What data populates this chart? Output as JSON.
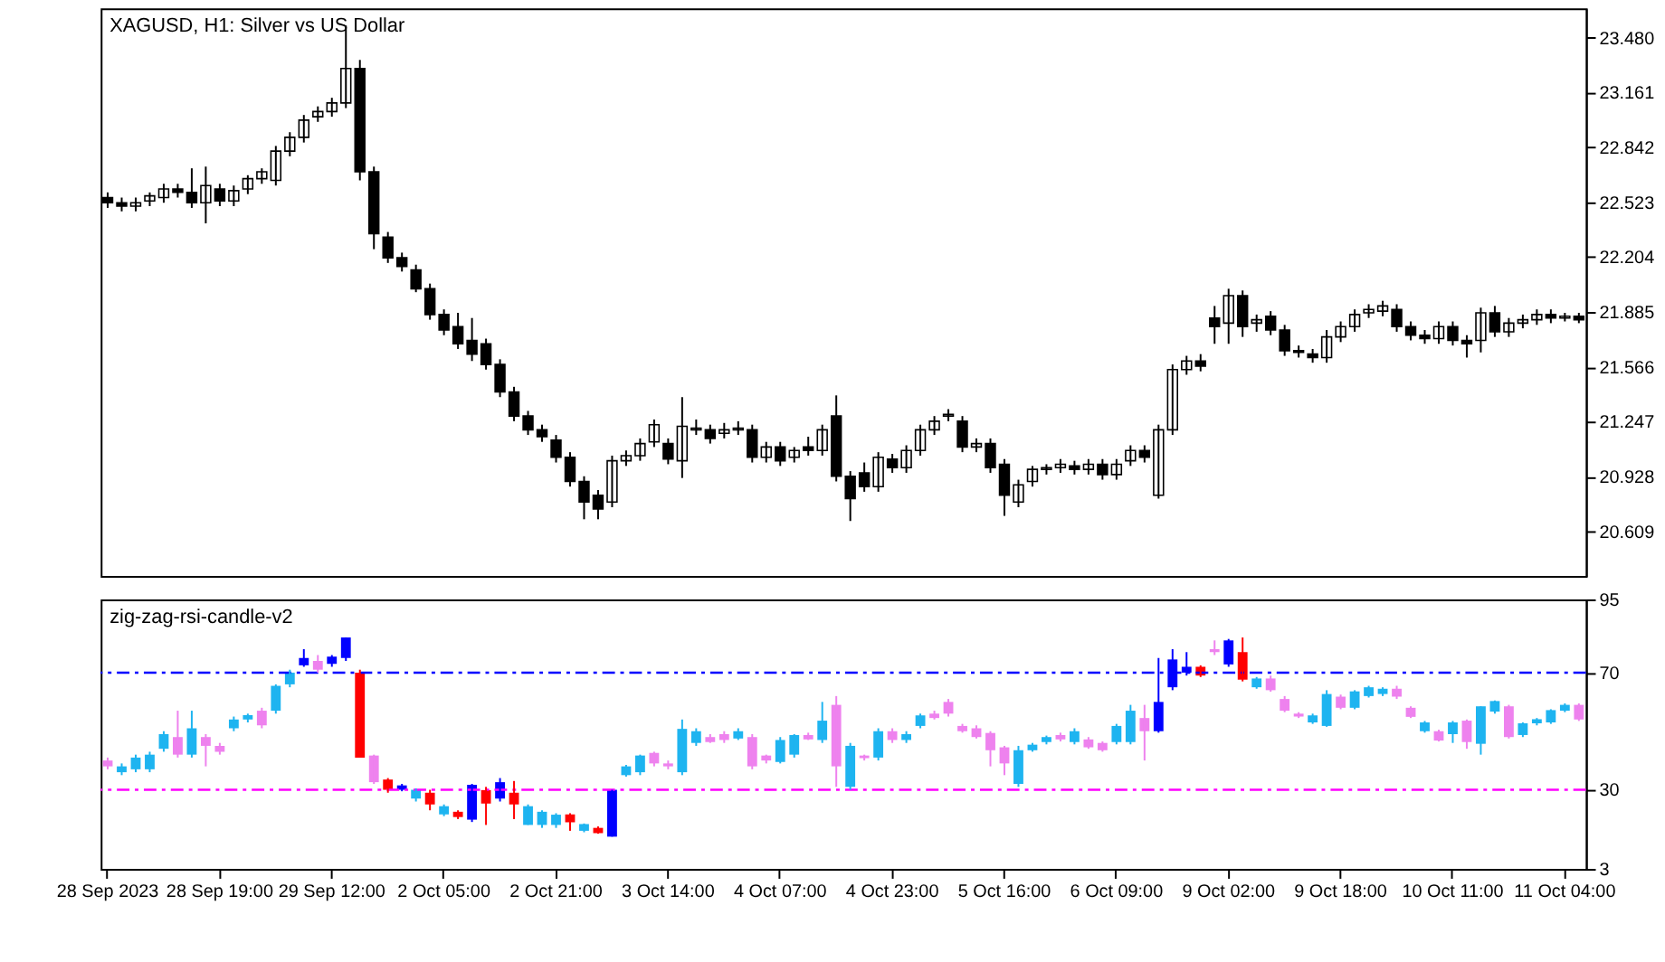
{
  "chart_data": [
    {
      "type": "candlestick",
      "title": "XAGUSD, H1:  Silver vs US Dollar",
      "color": "#000000",
      "tick_labels": "y",
      "grid": false,
      "categories": [
        null,
        null,
        null,
        null,
        null,
        null,
        null,
        null,
        null,
        null,
        null,
        null,
        null,
        null,
        null,
        null,
        null,
        null,
        null,
        null,
        null,
        null,
        null,
        null,
        null,
        null,
        null,
        null,
        null,
        null,
        null,
        null,
        null,
        null,
        null,
        null,
        null,
        null,
        null,
        null,
        null,
        null,
        null,
        null,
        null,
        null,
        null,
        null,
        null,
        null,
        null,
        null,
        null,
        null,
        null,
        null,
        null,
        null,
        null,
        null,
        null,
        null,
        null,
        null,
        null,
        null,
        null,
        null,
        null,
        null,
        null,
        null,
        null,
        null,
        null,
        null,
        null,
        null,
        null,
        null,
        null,
        null,
        null,
        null,
        null,
        null,
        null,
        null,
        null,
        null,
        null,
        null,
        null,
        null,
        null,
        null,
        null,
        null,
        null,
        null,
        null,
        null,
        null,
        null,
        null,
        null
      ],
      "ylim": [
        20.35,
        23.65
      ],
      "yticks": [
        20.609,
        20.928,
        21.247,
        21.566,
        21.885,
        22.204,
        22.523,
        22.842,
        23.161,
        {
          "value": 23.48,
          "label": "23.480"
        }
      ],
      "ohlc": [
        [
          22.55,
          22.58,
          22.49,
          22.52
        ],
        [
          22.52,
          22.55,
          22.47,
          22.5
        ],
        [
          22.5,
          22.55,
          22.47,
          22.52
        ],
        [
          22.53,
          22.58,
          22.5,
          22.56
        ],
        [
          22.55,
          22.63,
          22.52,
          22.6
        ],
        [
          22.6,
          22.63,
          22.55,
          22.58
        ],
        [
          22.58,
          22.72,
          22.49,
          22.52
        ],
        [
          22.52,
          22.73,
          22.4,
          22.62
        ],
        [
          22.6,
          22.63,
          22.5,
          22.53
        ],
        [
          22.53,
          22.62,
          22.5,
          22.59
        ],
        [
          22.6,
          22.68,
          22.57,
          22.66
        ],
        [
          22.66,
          22.72,
          22.63,
          22.7
        ],
        [
          22.65,
          22.85,
          22.62,
          22.82
        ],
        [
          22.82,
          22.93,
          22.79,
          22.9
        ],
        [
          22.9,
          23.03,
          22.87,
          23.0
        ],
        [
          23.02,
          23.08,
          22.99,
          23.05
        ],
        [
          23.05,
          23.13,
          23.02,
          23.1
        ],
        [
          23.1,
          23.55,
          23.07,
          23.3
        ],
        [
          23.3,
          23.35,
          22.65,
          22.7
        ],
        [
          22.7,
          22.73,
          22.25,
          22.34
        ],
        [
          22.32,
          22.35,
          22.17,
          22.2
        ],
        [
          22.2,
          22.23,
          22.12,
          22.15
        ],
        [
          22.13,
          22.16,
          22.0,
          22.02
        ],
        [
          22.02,
          22.05,
          21.84,
          21.87
        ],
        [
          21.87,
          21.9,
          21.75,
          21.78
        ],
        [
          21.8,
          21.88,
          21.67,
          21.7
        ],
        [
          21.72,
          21.85,
          21.6,
          21.64
        ],
        [
          21.7,
          21.73,
          21.55,
          21.58
        ],
        [
          21.58,
          21.61,
          21.39,
          21.42
        ],
        [
          21.42,
          21.45,
          21.25,
          21.28
        ],
        [
          21.28,
          21.31,
          21.17,
          21.2
        ],
        [
          21.2,
          21.23,
          21.13,
          21.16
        ],
        [
          21.14,
          21.17,
          21.01,
          21.04
        ],
        [
          21.04,
          21.07,
          20.87,
          20.9
        ],
        [
          20.9,
          20.93,
          20.68,
          20.78
        ],
        [
          20.82,
          20.85,
          20.68,
          20.74
        ],
        [
          20.78,
          21.05,
          20.75,
          21.02
        ],
        [
          21.02,
          21.08,
          20.99,
          21.05
        ],
        [
          21.05,
          21.15,
          21.02,
          21.12
        ],
        [
          21.13,
          21.26,
          21.1,
          21.23
        ],
        [
          21.12,
          21.15,
          21.0,
          21.03
        ],
        [
          21.02,
          21.39,
          20.92,
          21.22
        ],
        [
          21.2,
          21.26,
          21.17,
          21.21
        ],
        [
          21.2,
          21.23,
          21.12,
          21.15
        ],
        [
          21.18,
          21.24,
          21.15,
          21.2
        ],
        [
          21.2,
          21.25,
          21.17,
          21.21
        ],
        [
          21.2,
          21.23,
          21.01,
          21.04
        ],
        [
          21.04,
          21.13,
          21.01,
          21.1
        ],
        [
          21.1,
          21.13,
          20.99,
          21.02
        ],
        [
          21.04,
          21.1,
          21.01,
          21.08
        ],
        [
          21.1,
          21.16,
          21.05,
          21.08
        ],
        [
          21.08,
          21.23,
          21.05,
          21.2
        ],
        [
          21.28,
          21.4,
          20.9,
          20.93
        ],
        [
          20.93,
          20.96,
          20.67,
          20.8
        ],
        [
          20.95,
          21.01,
          20.84,
          20.87
        ],
        [
          20.87,
          21.07,
          20.84,
          21.04
        ],
        [
          21.03,
          21.06,
          20.95,
          20.98
        ],
        [
          20.98,
          21.11,
          20.95,
          21.08
        ],
        [
          21.08,
          21.23,
          21.05,
          21.2
        ],
        [
          21.2,
          21.28,
          21.17,
          21.25
        ],
        [
          21.28,
          21.32,
          21.25,
          21.29
        ],
        [
          21.25,
          21.28,
          21.07,
          21.1
        ],
        [
          21.1,
          21.15,
          21.07,
          21.12
        ],
        [
          21.12,
          21.15,
          20.95,
          20.98
        ],
        [
          21.0,
          21.03,
          20.7,
          20.82
        ],
        [
          20.78,
          20.91,
          20.75,
          20.88
        ],
        [
          20.9,
          20.99,
          20.87,
          20.97
        ],
        [
          20.97,
          21.0,
          20.94,
          20.98
        ],
        [
          20.98,
          21.03,
          20.95,
          21.0
        ],
        [
          20.99,
          21.02,
          20.94,
          20.97
        ],
        [
          20.97,
          21.03,
          20.94,
          21.0
        ],
        [
          21.0,
          21.03,
          20.91,
          20.94
        ],
        [
          20.94,
          21.03,
          20.91,
          21.0
        ],
        [
          21.02,
          21.11,
          20.99,
          21.08
        ],
        [
          21.08,
          21.11,
          21.01,
          21.04
        ],
        [
          20.82,
          21.23,
          20.8,
          21.2
        ],
        [
          21.2,
          21.58,
          21.17,
          21.55
        ],
        [
          21.55,
          21.63,
          21.52,
          21.6
        ],
        [
          21.6,
          21.64,
          21.54,
          21.57
        ],
        [
          21.85,
          21.92,
          21.7,
          21.8
        ],
        [
          21.82,
          22.02,
          21.7,
          21.98
        ],
        [
          21.98,
          22.01,
          21.74,
          21.8
        ],
        [
          21.82,
          21.87,
          21.77,
          21.84
        ],
        [
          21.86,
          21.89,
          21.75,
          21.78
        ],
        [
          21.78,
          21.81,
          21.63,
          21.66
        ],
        [
          21.66,
          21.69,
          21.62,
          21.65
        ],
        [
          21.64,
          21.67,
          21.59,
          21.62
        ],
        [
          21.62,
          21.78,
          21.59,
          21.74
        ],
        [
          21.74,
          21.83,
          21.71,
          21.8
        ],
        [
          21.8,
          21.9,
          21.77,
          21.87
        ],
        [
          21.88,
          21.93,
          21.85,
          21.9
        ],
        [
          21.89,
          21.95,
          21.86,
          21.92
        ],
        [
          21.9,
          21.93,
          21.77,
          21.8
        ],
        [
          21.8,
          21.83,
          21.72,
          21.75
        ],
        [
          21.75,
          21.78,
          21.7,
          21.73
        ],
        [
          21.73,
          21.83,
          21.7,
          21.8
        ],
        [
          21.8,
          21.83,
          21.69,
          21.72
        ],
        [
          21.72,
          21.75,
          21.62,
          21.7
        ],
        [
          21.72,
          21.91,
          21.65,
          21.88
        ],
        [
          21.88,
          21.92,
          21.74,
          21.77
        ],
        [
          21.77,
          21.85,
          21.74,
          21.82
        ],
        [
          21.82,
          21.87,
          21.79,
          21.84
        ],
        [
          21.84,
          21.9,
          21.81,
          21.87
        ],
        [
          21.87,
          21.9,
          21.82,
          21.85
        ],
        [
          21.85,
          21.88,
          21.83,
          21.86
        ],
        [
          21.86,
          21.88,
          21.82,
          21.84
        ]
      ]
    },
    {
      "type": "candlestick",
      "title": "zig-zag-rsi-candle-v2",
      "grid": false,
      "categories": [
        "28 Sep 2023",
        null,
        null,
        null,
        null,
        null,
        null,
        null,
        "28 Sep 19:00",
        null,
        null,
        null,
        null,
        null,
        null,
        null,
        "29 Sep 12:00",
        null,
        null,
        null,
        null,
        null,
        null,
        null,
        "2 Oct 05:00",
        null,
        null,
        null,
        null,
        null,
        null,
        null,
        "2 Oct 21:00",
        null,
        null,
        null,
        null,
        null,
        null,
        null,
        "3 Oct 14:00",
        null,
        null,
        null,
        null,
        null,
        null,
        null,
        "4 Oct 07:00",
        null,
        null,
        null,
        null,
        null,
        null,
        null,
        "4 Oct 23:00",
        null,
        null,
        null,
        null,
        null,
        null,
        null,
        "5 Oct 16:00",
        null,
        null,
        null,
        null,
        null,
        null,
        null,
        "6 Oct 09:00",
        null,
        null,
        null,
        null,
        null,
        null,
        null,
        "9 Oct 02:00",
        null,
        null,
        null,
        null,
        null,
        null,
        null,
        "9 Oct 18:00",
        null,
        null,
        null,
        null,
        null,
        null,
        null,
        "10 Oct 11:00",
        null,
        null,
        null,
        null,
        null,
        null,
        null,
        "11 Oct 04:00",
        null
      ],
      "ylim": [
        3,
        95
      ],
      "yticks": [
        3,
        30,
        70,
        95
      ],
      "ref_lines": [
        {
          "axis": "y",
          "value": 70,
          "color": "#0000ff",
          "line_style": "dashed"
        },
        {
          "axis": "y",
          "value": 30,
          "color": "#ff00ff",
          "line_style": "dashed"
        }
      ],
      "ohlc": [
        [
          40,
          41,
          37,
          38
        ],
        [
          36,
          39,
          35,
          38
        ],
        [
          37,
          42,
          36,
          41
        ],
        [
          37,
          43,
          36,
          42
        ],
        [
          44,
          50,
          43,
          49
        ],
        [
          48,
          57,
          41,
          42
        ],
        [
          42,
          57,
          41,
          51
        ],
        [
          48,
          49,
          38,
          45
        ],
        [
          45,
          46,
          42,
          43
        ],
        [
          51,
          55,
          50,
          54
        ],
        [
          54,
          56,
          53,
          55.5
        ],
        [
          57,
          58,
          51,
          52
        ],
        [
          57,
          66,
          56,
          65.5
        ],
        [
          66,
          71,
          65,
          70
        ],
        [
          72.5,
          78,
          72,
          75
        ],
        [
          74,
          76,
          70,
          71
        ],
        [
          73,
          76,
          72,
          75.5
        ],
        [
          75,
          82,
          74,
          82
        ],
        [
          70,
          71,
          41,
          41
        ],
        [
          41.7,
          42,
          32,
          32.6
        ],
        [
          33.5,
          34,
          29,
          30
        ],
        [
          30,
          32,
          29.5,
          31.5
        ],
        [
          27,
          30.5,
          26,
          30
        ],
        [
          29,
          30,
          23,
          25
        ],
        [
          21.6,
          25,
          21,
          24.4
        ],
        [
          22.5,
          23,
          20,
          20.7
        ],
        [
          19.8,
          32,
          19,
          31.7
        ],
        [
          29.9,
          31,
          18,
          25.3
        ],
        [
          27,
          34,
          26,
          32.6
        ],
        [
          29,
          33,
          20,
          25
        ],
        [
          18,
          25,
          18,
          24.4
        ],
        [
          18,
          23,
          17,
          22.5
        ],
        [
          18,
          22,
          17,
          21.5
        ],
        [
          21.6,
          22,
          16,
          18.9
        ],
        [
          16,
          18.5,
          15.5,
          18.3
        ],
        [
          17,
          17.5,
          15,
          15.2
        ],
        [
          14,
          30,
          14,
          30
        ],
        [
          35,
          38.5,
          34.5,
          38
        ],
        [
          36,
          42,
          35,
          41.7
        ],
        [
          42.6,
          43,
          38,
          39
        ],
        [
          39,
          40,
          37,
          38
        ],
        [
          36,
          54,
          35,
          50.8
        ],
        [
          46,
          51,
          45,
          50
        ],
        [
          48,
          49,
          46,
          46.3
        ],
        [
          49,
          50,
          46,
          47
        ],
        [
          47.5,
          51,
          47,
          50
        ],
        [
          48,
          49,
          37,
          38
        ],
        [
          41.7,
          42,
          39,
          40
        ],
        [
          39.5,
          48,
          39,
          47
        ],
        [
          42,
          49,
          41,
          48.7
        ],
        [
          48.7,
          49.5,
          47,
          47.2
        ],
        [
          47,
          60,
          46,
          53.6
        ],
        [
          59,
          62,
          31,
          38
        ],
        [
          31,
          46,
          30,
          45
        ],
        [
          41.7,
          42,
          40,
          40.8
        ],
        [
          41,
          51,
          40,
          50
        ],
        [
          50,
          51,
          46,
          47
        ],
        [
          47,
          50,
          46,
          49
        ],
        [
          51.8,
          56,
          51,
          55.4
        ],
        [
          56,
          57,
          54,
          54.5
        ],
        [
          60,
          61,
          55,
          56
        ],
        [
          51.8,
          52.5,
          49.5,
          50
        ],
        [
          51,
          52,
          47.5,
          48
        ],
        [
          49.4,
          50,
          38,
          43.5
        ],
        [
          44.5,
          45,
          35,
          39
        ],
        [
          32,
          45,
          31,
          43.5
        ],
        [
          43.5,
          46,
          43,
          45.4
        ],
        [
          46.3,
          48.5,
          45.5,
          48
        ],
        [
          48.7,
          49.5,
          46.5,
          47.2
        ],
        [
          46.3,
          51,
          45.5,
          50
        ],
        [
          47.2,
          48,
          44,
          44.5
        ],
        [
          46,
          46.5,
          43,
          43.5
        ],
        [
          46.3,
          52.5,
          45.5,
          51.8
        ],
        [
          46.3,
          59,
          45.5,
          57
        ],
        [
          54.5,
          59,
          40,
          50
        ],
        [
          50,
          75,
          49.5,
          60
        ],
        [
          65,
          78,
          64,
          74.5
        ],
        [
          70,
          77,
          69,
          72
        ],
        [
          72,
          72.5,
          68.5,
          69
        ],
        [
          78,
          81,
          76,
          77
        ],
        [
          72.8,
          81.5,
          72,
          81
        ],
        [
          77,
          82,
          67,
          67.6
        ],
        [
          65,
          68.5,
          64.5,
          68
        ],
        [
          68,
          69,
          63.5,
          64
        ],
        [
          61,
          62,
          56.5,
          57
        ],
        [
          56,
          56.5,
          54.5,
          55
        ],
        [
          53,
          56,
          52.5,
          55.4
        ],
        [
          51.8,
          64,
          51.5,
          62.7
        ],
        [
          61.8,
          62.5,
          57.5,
          58
        ],
        [
          58,
          64,
          57.5,
          63.6
        ],
        [
          62,
          65.5,
          61.5,
          65
        ],
        [
          62.7,
          65,
          62,
          64.5
        ],
        [
          64.5,
          65.5,
          61,
          61.8
        ],
        [
          58,
          58.5,
          54.5,
          54.9
        ],
        [
          50,
          53.5,
          49.5,
          53
        ],
        [
          50,
          50.5,
          46.5,
          46.8
        ],
        [
          49,
          53.5,
          46,
          53
        ],
        [
          53.6,
          54,
          44,
          46.3
        ],
        [
          45.7,
          58.5,
          42,
          58.5
        ],
        [
          56.7,
          60.5,
          56,
          60.3
        ],
        [
          58.5,
          59,
          47.5,
          48
        ],
        [
          48.7,
          53,
          48,
          52.7
        ],
        [
          52.7,
          54.5,
          52,
          54.1
        ],
        [
          53,
          57.5,
          52.5,
          57.2
        ],
        [
          57,
          59.5,
          56.5,
          59
        ],
        [
          59,
          59.5,
          53.5,
          54
        ]
      ],
      "colors": [
        "#ee82ee",
        "#1eb4f0",
        "#1eb4f0",
        "#1eb4f0",
        "#1eb4f0",
        "#ee82ee",
        "#1eb4f0",
        "#ee82ee",
        "#ee82ee",
        "#1eb4f0",
        "#1eb4f0",
        "#ee82ee",
        "#1eb4f0",
        "#1eb4f0",
        "#0000ff",
        "#ee82ee",
        "#0000ff",
        "#0000ff",
        "#ff0000",
        "#ee82ee",
        "#ff0000",
        "#0000ff",
        "#1eb4f0",
        "#ff0000",
        "#1eb4f0",
        "#ff0000",
        "#0000ff",
        "#ff0000",
        "#0000ff",
        "#ff0000",
        "#1eb4f0",
        "#1eb4f0",
        "#1eb4f0",
        "#ff0000",
        "#1eb4f0",
        "#ff0000",
        "#0000ff",
        "#1eb4f0",
        "#1eb4f0",
        "#ee82ee",
        "#ee82ee",
        "#1eb4f0",
        "#1eb4f0",
        "#ee82ee",
        "#ee82ee",
        "#1eb4f0",
        "#ee82ee",
        "#ee82ee",
        "#1eb4f0",
        "#1eb4f0",
        "#ee82ee",
        "#1eb4f0",
        "#ee82ee",
        "#1eb4f0",
        "#ee82ee",
        "#1eb4f0",
        "#ee82ee",
        "#1eb4f0",
        "#1eb4f0",
        "#ee82ee",
        "#ee82ee",
        "#ee82ee",
        "#ee82ee",
        "#ee82ee",
        "#ee82ee",
        "#1eb4f0",
        "#1eb4f0",
        "#1eb4f0",
        "#ee82ee",
        "#1eb4f0",
        "#ee82ee",
        "#ee82ee",
        "#1eb4f0",
        "#1eb4f0",
        "#ee82ee",
        "#0000ff",
        "#0000ff",
        "#0000ff",
        "#ff0000",
        "#ee82ee",
        "#0000ff",
        "#ff0000",
        "#1eb4f0",
        "#ee82ee",
        "#ee82ee",
        "#ee82ee",
        "#1eb4f0",
        "#1eb4f0",
        "#ee82ee",
        "#1eb4f0",
        "#1eb4f0",
        "#1eb4f0",
        "#ee82ee",
        "#ee82ee",
        "#1eb4f0",
        "#ee82ee",
        "#1eb4f0",
        "#ee82ee",
        "#1eb4f0",
        "#1eb4f0",
        "#ee82ee",
        "#1eb4f0",
        "#1eb4f0",
        "#1eb4f0",
        "#1eb4f0",
        "#ee82ee"
      ]
    }
  ]
}
